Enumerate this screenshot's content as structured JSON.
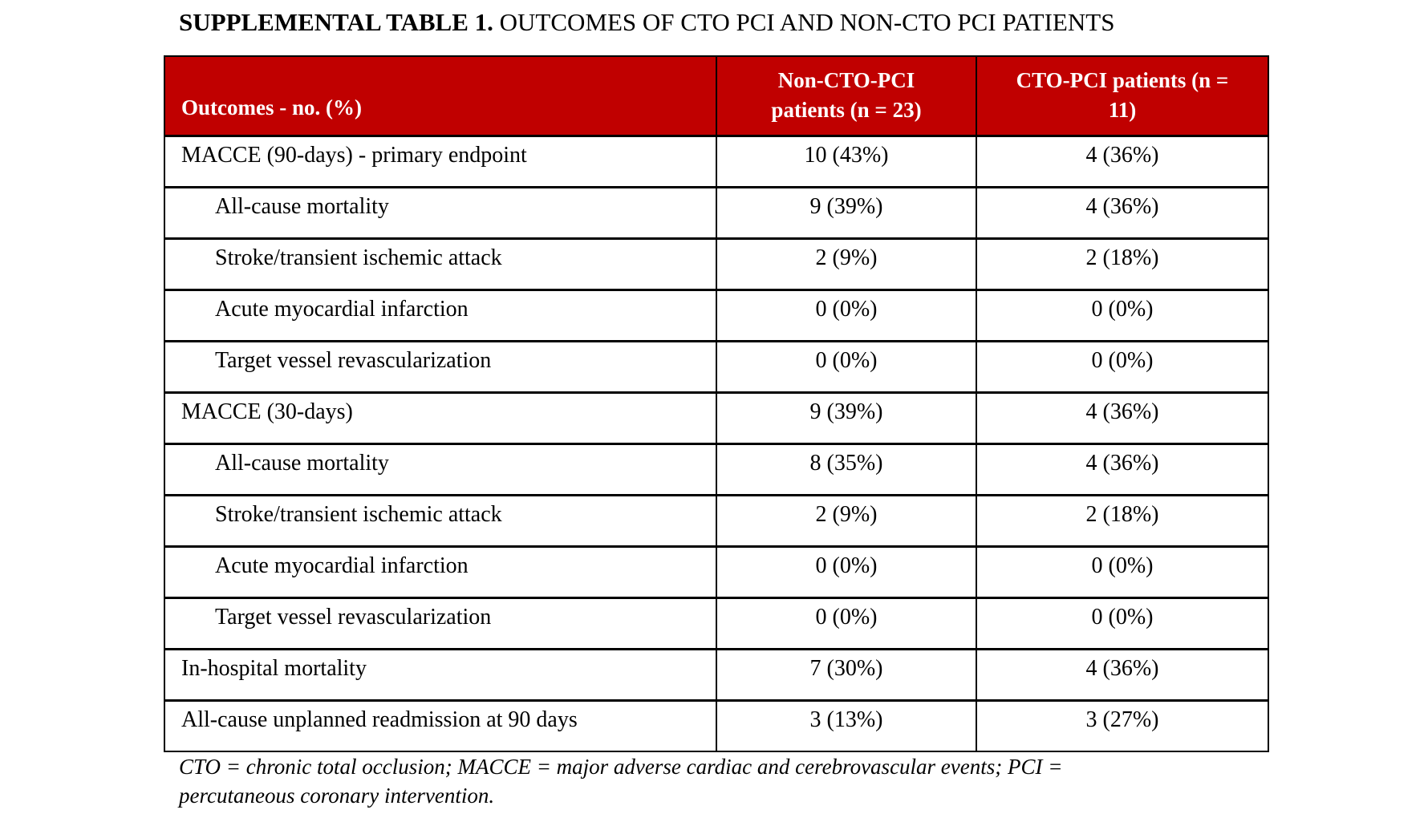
{
  "title": {
    "bold_part": "SUPPLEMENTAL TABLE 1.",
    "rest_part": "OUTCOMES OF CTO PCI AND NON-CTO PCI PATIENTS"
  },
  "colors": {
    "header_bg": "#C00000",
    "header_text": "#FFFFFF",
    "border": "#000000",
    "body_text": "#000000"
  },
  "table": {
    "columns": [
      {
        "label": "Outcomes - no. (%)"
      },
      {
        "label": "Non-CTO-PCI patients (n = 23)",
        "line1": "Non-CTO-PCI",
        "line2": "patients (n = 23)"
      },
      {
        "label": "CTO-PCI patients (n = 11)",
        "line1": "CTO-PCI patients (n =",
        "line2": "11)"
      }
    ],
    "rows": [
      {
        "label": "MACCE (90-days) - primary endpoint",
        "indent": false,
        "non_cto_pci": "10 (43%)",
        "cto_pci": "4 (36%)"
      },
      {
        "label": "All-cause mortality",
        "indent": true,
        "non_cto_pci": "9 (39%)",
        "cto_pci": "4 (36%)"
      },
      {
        "label": "Stroke/transient ischemic attack",
        "indent": true,
        "non_cto_pci": "2 (9%)",
        "cto_pci": "2 (18%)"
      },
      {
        "label": "Acute myocardial infarction",
        "indent": true,
        "non_cto_pci": "0 (0%)",
        "cto_pci": "0 (0%)"
      },
      {
        "label": "Target vessel revascularization",
        "indent": true,
        "non_cto_pci": "0 (0%)",
        "cto_pci": "0 (0%)"
      },
      {
        "label": "MACCE (30-days)",
        "indent": false,
        "non_cto_pci": "9 (39%)",
        "cto_pci": "4 (36%)"
      },
      {
        "label": "All-cause mortality",
        "indent": true,
        "non_cto_pci": "8 (35%)",
        "cto_pci": "4 (36%)"
      },
      {
        "label": "Stroke/transient ischemic attack",
        "indent": true,
        "non_cto_pci": "2 (9%)",
        "cto_pci": "2 (18%)"
      },
      {
        "label": "Acute myocardial infarction",
        "indent": true,
        "non_cto_pci": "0 (0%)",
        "cto_pci": "0 (0%)"
      },
      {
        "label": "Target vessel revascularization",
        "indent": true,
        "non_cto_pci": "0 (0%)",
        "cto_pci": "0 (0%)"
      },
      {
        "label": "In-hospital mortality",
        "indent": false,
        "non_cto_pci": "7 (30%)",
        "cto_pci": "4 (36%)"
      },
      {
        "label": "All-cause unplanned readmission at 90 days",
        "indent": false,
        "non_cto_pci": "3 (13%)",
        "cto_pci": "3 (27%)"
      }
    ]
  },
  "footnote": {
    "line1": "CTO = chronic total occlusion; MACCE = major adverse cardiac and cerebrovascular events; PCI =",
    "line2": "percutaneous coronary intervention."
  }
}
